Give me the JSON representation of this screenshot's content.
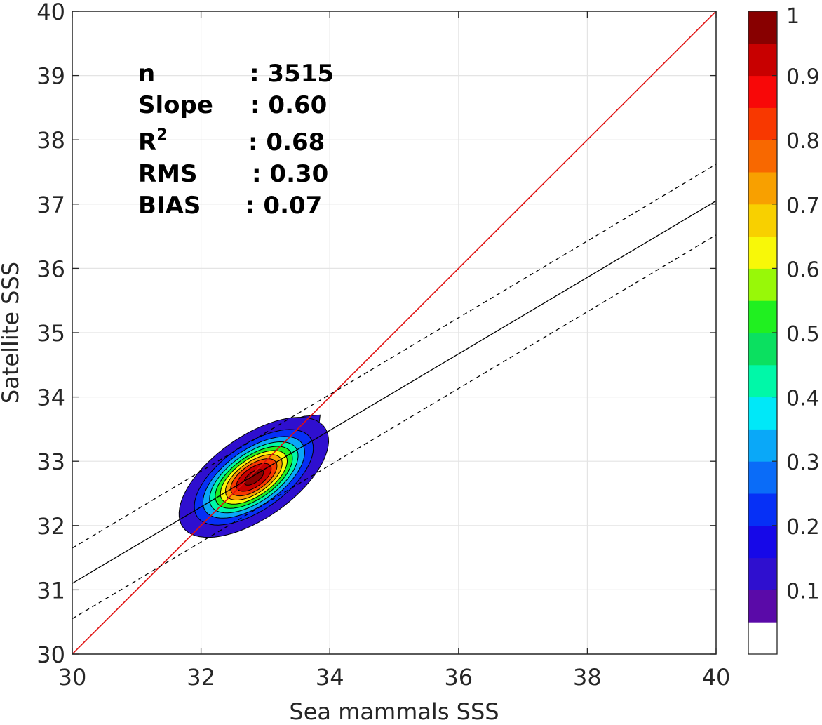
{
  "chart_data": {
    "type": "contour",
    "xlabel": "Sea mammals  SSS",
    "ylabel": "Satellite SSS",
    "xlim": [
      30,
      40
    ],
    "ylim": [
      30,
      40
    ],
    "xticks": [
      "30",
      "32",
      "34",
      "36",
      "38",
      "40"
    ],
    "yticks": [
      "30",
      "31",
      "32",
      "33",
      "34",
      "35",
      "36",
      "37",
      "38",
      "39",
      "40"
    ],
    "grid": true,
    "stats": {
      "n": {
        "label": "n",
        "value": ": 3515"
      },
      "slope": {
        "label": "Slope",
        "value": ": 0.60"
      },
      "r2": {
        "label": "R",
        "sup": "2",
        "value": ": 0.68"
      },
      "rms": {
        "label": "RMS",
        "value": ": 0.30"
      },
      "bias": {
        "label": "BIAS",
        "value": ": 0.07"
      }
    },
    "lines": [
      {
        "role": "one-to-one",
        "style": "solid",
        "color": "#e01010",
        "x": [
          30,
          40
        ],
        "y": [
          30,
          40
        ]
      },
      {
        "role": "regression",
        "style": "solid",
        "color": "#000000",
        "x": [
          30,
          40
        ],
        "y": [
          31.1,
          37.05
        ]
      },
      {
        "role": "upper-bound",
        "style": "dashed",
        "color": "#000000",
        "x": [
          30,
          40
        ],
        "y": [
          31.65,
          37.62
        ]
      },
      {
        "role": "lower-bound",
        "style": "dashed",
        "color": "#000000",
        "x": [
          30,
          40
        ],
        "y": [
          30.55,
          36.52
        ]
      }
    ],
    "density": {
      "peak": {
        "x": 32.82,
        "y": 32.75
      },
      "angle_deg": 35,
      "sx": 0.55,
      "sy": 0.26,
      "levels": [
        0.05,
        0.15,
        0.25,
        0.35,
        0.45,
        0.55,
        0.65,
        0.75,
        0.85,
        0.95
      ],
      "outer_blob": {
        "x": [
          32.1,
          32.3,
          32.7,
          33.2,
          33.6,
          33.85,
          33.8,
          33.5,
          33.0,
          32.55,
          32.2,
          32.1
        ],
        "y": [
          32.35,
          32.9,
          33.35,
          33.58,
          33.7,
          33.72,
          33.3,
          32.85,
          32.4,
          32.07,
          32.05,
          32.35
        ]
      }
    },
    "colorbar": {
      "ticks": [
        "1",
        "0.9",
        "0.8",
        "0.7",
        "0.6",
        "0.5",
        "0.4",
        "0.3",
        "0.2",
        "0.1"
      ],
      "tick_values": [
        1,
        0.9,
        0.8,
        0.7,
        0.6,
        0.5,
        0.4,
        0.3,
        0.2,
        0.1
      ],
      "range": [
        0,
        1
      ],
      "colors": [
        "#ffffff",
        "#5a0aa8",
        "#2f0fcf",
        "#1608e8",
        "#0630f6",
        "#0a6cf8",
        "#0aa8f8",
        "#00e8f8",
        "#00f8a8",
        "#0be060",
        "#20f020",
        "#98f808",
        "#f8f808",
        "#f8d000",
        "#f8a000",
        "#f86800",
        "#f83800",
        "#f80808",
        "#c80000",
        "#880000"
      ]
    }
  }
}
